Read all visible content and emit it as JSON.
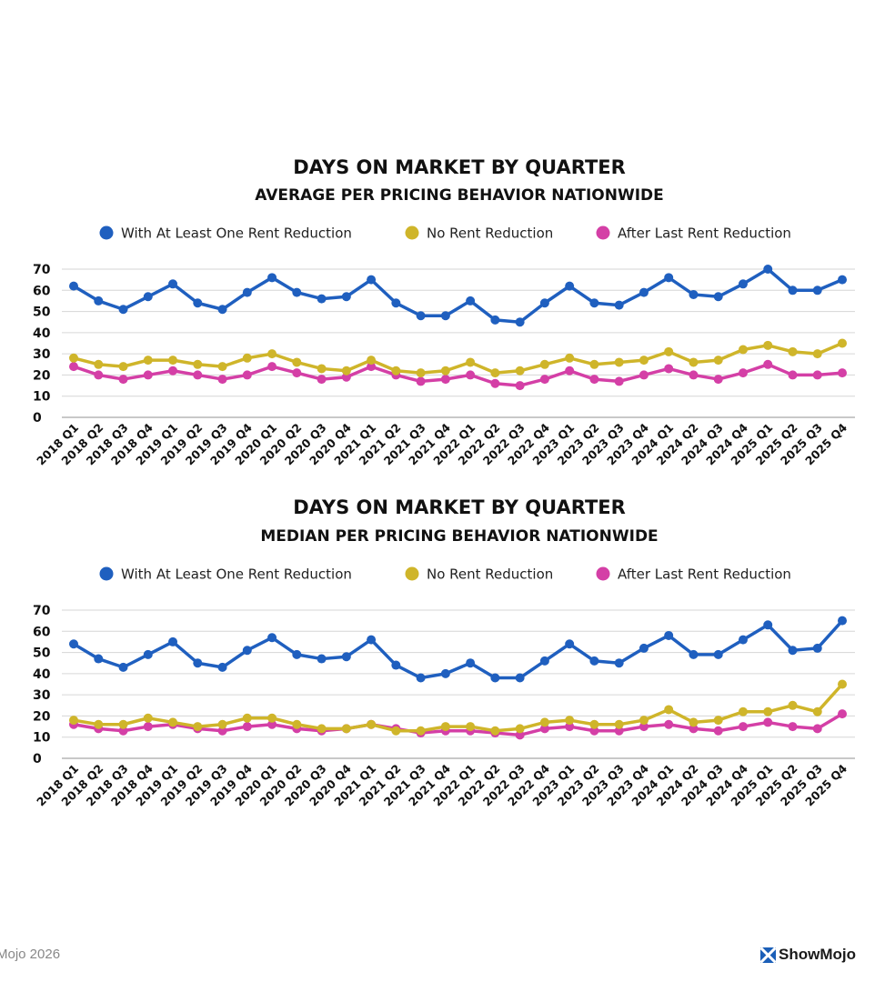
{
  "chart_data": [
    {
      "type": "line",
      "title": "DAYS ON MARKET BY QUARTER",
      "subtitle": "AVERAGE PER PRICING BEHAVIOR NATIONWIDE",
      "xlabel": "",
      "ylabel": "",
      "ylim": [
        0,
        70
      ],
      "yticks": [
        "0",
        "10",
        "20",
        "30",
        "40",
        "50",
        "60",
        "70"
      ],
      "grid": true,
      "legend_placement": "top-center",
      "categories": [
        "2018 Q1",
        "2018 Q2",
        "2018 Q3",
        "2018 Q4",
        "2019 Q1",
        "2019 Q2",
        "2019 Q3",
        "2019 Q4",
        "2020 Q1",
        "2020 Q2",
        "2020 Q3",
        "2020 Q4",
        "2021 Q1",
        "2021 Q2",
        "2021 Q3",
        "2021 Q4",
        "2022 Q1",
        "2022 Q2",
        "2022 Q3",
        "2022 Q4",
        "2023 Q1",
        "2023 Q2",
        "2023 Q3",
        "2023 Q4",
        "2024 Q1",
        "2024 Q2",
        "2024 Q3",
        "2024 Q4",
        "2025 Q1",
        "2025 Q2",
        "2025 Q3",
        "2025 Q4"
      ],
      "series": [
        {
          "name": "With At Least One Rent Reduction",
          "color": "#1f5fbf",
          "values": [
            62,
            55,
            51,
            57,
            63,
            54,
            51,
            59,
            66,
            59,
            56,
            57,
            65,
            54,
            48,
            48,
            55,
            46,
            45,
            54,
            62,
            54,
            53,
            59,
            66,
            58,
            57,
            63,
            70,
            60,
            60,
            65
          ]
        },
        {
          "name": "No Rent Reduction",
          "color": "#cfb52a",
          "values": [
            28,
            25,
            24,
            27,
            27,
            25,
            24,
            28,
            30,
            26,
            23,
            22,
            27,
            22,
            21,
            22,
            26,
            21,
            22,
            25,
            28,
            25,
            26,
            27,
            31,
            26,
            27,
            32,
            34,
            31,
            30,
            35
          ]
        },
        {
          "name": "After Last Rent Reduction",
          "color": "#d43fa6",
          "values": [
            24,
            20,
            18,
            20,
            22,
            20,
            18,
            20,
            24,
            21,
            18,
            19,
            24,
            20,
            17,
            18,
            20,
            16,
            15,
            18,
            22,
            18,
            17,
            20,
            23,
            20,
            18,
            21,
            25,
            20,
            20,
            21
          ]
        }
      ]
    },
    {
      "type": "line",
      "title": "DAYS ON MARKET BY QUARTER",
      "subtitle": "MEDIAN PER PRICING BEHAVIOR NATIONWIDE",
      "xlabel": "",
      "ylabel": "",
      "ylim": [
        0,
        70
      ],
      "yticks": [
        "0",
        "10",
        "20",
        "30",
        "40",
        "50",
        "60",
        "70"
      ],
      "grid": true,
      "legend_placement": "top-center",
      "categories": [
        "2018 Q1",
        "2018 Q2",
        "2018 Q3",
        "2018 Q4",
        "2019 Q1",
        "2019 Q2",
        "2019 Q3",
        "2019 Q4",
        "2020 Q1",
        "2020 Q2",
        "2020 Q3",
        "2020 Q4",
        "2021 Q1",
        "2021 Q2",
        "2021 Q3",
        "2021 Q4",
        "2022 Q1",
        "2022 Q2",
        "2022 Q3",
        "2022 Q4",
        "2023 Q1",
        "2023 Q2",
        "2023 Q3",
        "2023 Q4",
        "2024 Q1",
        "2024 Q2",
        "2024 Q3",
        "2024 Q4",
        "2025 Q1",
        "2025 Q2",
        "2025 Q3",
        "2025 Q4"
      ],
      "series": [
        {
          "name": "With At Least One Rent Reduction",
          "color": "#1f5fbf",
          "values": [
            54,
            47,
            43,
            49,
            55,
            45,
            43,
            51,
            57,
            49,
            47,
            48,
            56,
            44,
            38,
            40,
            45,
            38,
            38,
            46,
            54,
            46,
            45,
            52,
            58,
            49,
            49,
            56,
            63,
            51,
            52,
            65
          ]
        },
        {
          "name": "No Rent Reduction",
          "color": "#cfb52a",
          "values": [
            18,
            16,
            16,
            19,
            17,
            15,
            16,
            19,
            19,
            16,
            14,
            14,
            16,
            13,
            13,
            15,
            15,
            13,
            14,
            17,
            18,
            16,
            16,
            18,
            23,
            17,
            18,
            22,
            22,
            25,
            22,
            35
          ]
        },
        {
          "name": "After Last Rent Reduction",
          "color": "#d43fa6",
          "values": [
            16,
            14,
            13,
            15,
            16,
            14,
            13,
            15,
            16,
            14,
            13,
            14,
            16,
            14,
            12,
            13,
            13,
            12,
            11,
            14,
            15,
            13,
            13,
            15,
            16,
            14,
            13,
            15,
            17,
            15,
            14,
            21
          ]
        }
      ]
    }
  ],
  "footer": {
    "copyright": "Mojo 2026",
    "logo": "ShowMojo"
  }
}
